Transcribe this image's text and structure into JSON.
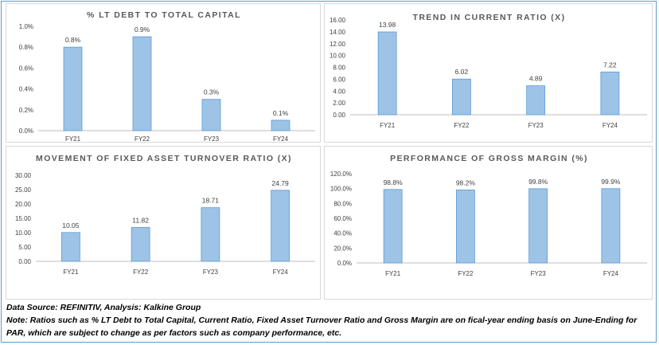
{
  "colors": {
    "bar_fill": "#9dc3e6",
    "bar_stroke": "#5b9bd5",
    "frame": "#5b9bd5",
    "axis": "#bfbfbf"
  },
  "chart_data": [
    {
      "type": "bar",
      "title": "% LT DEBT TO TOTAL CAPITAL",
      "categories": [
        "FY21",
        "FY22",
        "FY23",
        "FY24"
      ],
      "values": [
        0.8,
        0.9,
        0.3,
        0.1
      ],
      "value_labels": [
        "0.8%",
        "0.9%",
        "0.3%",
        "0.1%"
      ],
      "yticks": [
        "1.0%",
        "0.8%",
        "0.6%",
        "0.4%",
        "0.2%",
        "0.0%"
      ],
      "ylim": [
        0,
        1.0
      ],
      "grid": false
    },
    {
      "type": "bar",
      "title": "TREND IN CURRENT RATIO (X)",
      "categories": [
        "FY21",
        "FY22",
        "FY23",
        "FY24"
      ],
      "values": [
        13.98,
        6.02,
        4.89,
        7.22
      ],
      "value_labels": [
        "13.98",
        "6.02",
        "4.89",
        "7.22"
      ],
      "yticks": [
        "16.00",
        "14.00",
        "12.00",
        "10.00",
        "8.00",
        "6.00",
        "4.00",
        "2.00",
        "0.00"
      ],
      "ylim": [
        0,
        16
      ],
      "grid": false
    },
    {
      "type": "bar",
      "title": "MOVEMENT OF FIXED ASSET TURNOVER RATIO (X)",
      "categories": [
        "FY21",
        "FY22",
        "FY23",
        "FY24"
      ],
      "values": [
        10.05,
        11.82,
        18.71,
        24.79
      ],
      "value_labels": [
        "10.05",
        "11.82",
        "18.71",
        "24.79"
      ],
      "yticks": [
        "30.00",
        "25.00",
        "20.00",
        "15.00",
        "10.00",
        "5.00",
        "0.00"
      ],
      "ylim": [
        0,
        30
      ],
      "grid": false
    },
    {
      "type": "bar",
      "title": "PERFORMANCE OF GROSS MARGIN (%)",
      "categories": [
        "FY21",
        "FY22",
        "FY23",
        "FY24"
      ],
      "values": [
        98.8,
        98.2,
        99.8,
        99.9
      ],
      "value_labels": [
        "98.8%",
        "98.2%",
        "99.8%",
        "99.9%"
      ],
      "yticks": [
        "120.0%",
        "100.0%",
        "80.0%",
        "60.0%",
        "40.0%",
        "20.0%",
        "0.0%"
      ],
      "ylim": [
        0,
        120
      ],
      "grid": false
    }
  ],
  "footer": {
    "source": "Data Source: REFINITIV, Analysis: Kalkine Group",
    "note": "Note: Ratios such as % LT Debt to Total Capital, Current Ratio, Fixed Asset Turnover Ratio and Gross Margin are on fical-year ending basis on June-Ending for PAR, which are subject to change as per factors such as company performance, etc."
  }
}
